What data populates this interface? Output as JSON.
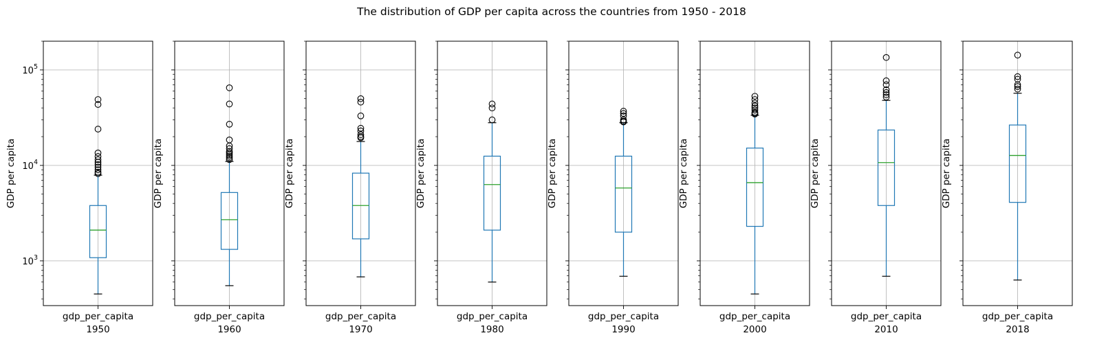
{
  "chart_data": {
    "type": "box",
    "title": "The distribution of GDP per capita across the countries from 1950 - 2018",
    "ylabel": "GDP per capita",
    "y_scale": "log",
    "ylim": [
      340,
      200000
    ],
    "y_major_ticks": [
      1000,
      10000,
      100000
    ],
    "grid": true,
    "colors": {
      "box": "#1f77b4",
      "median": "#2ca02c",
      "whisker": "#1f77b4",
      "cap": "#000000",
      "flier": "#000000",
      "grid": "#b0b0b0"
    },
    "panels": [
      {
        "xlabel": "gdp_per_capita",
        "year": "1950",
        "whisker_low": 450,
        "q1": 1080,
        "median": 2100,
        "q3": 3800,
        "whisker_high": 7900,
        "outliers": [
          49000,
          43500,
          24000,
          13500,
          12400,
          11500,
          10800,
          10200,
          9600,
          9000,
          8500,
          8200
        ]
      },
      {
        "xlabel": "gdp_per_capita",
        "year": "1960",
        "whisker_low": 550,
        "q1": 1320,
        "median": 2700,
        "q3": 5200,
        "whisker_high": 11000,
        "outliers": [
          65000,
          44000,
          27000,
          18500,
          16000,
          15000,
          14000,
          13500,
          13000,
          12500,
          12000,
          11500
        ]
      },
      {
        "xlabel": "gdp_per_capita",
        "year": "1970",
        "whisker_low": 680,
        "q1": 1700,
        "median": 3800,
        "q3": 8300,
        "whisker_high": 17800,
        "outliers": [
          50000,
          46000,
          33000,
          24500,
          23000,
          21000,
          20000,
          19500
        ]
      },
      {
        "xlabel": "gdp_per_capita",
        "year": "1980",
        "whisker_low": 600,
        "q1": 2100,
        "median": 6300,
        "q3": 12500,
        "whisker_high": 28000,
        "outliers": [
          44000,
          40000,
          30000
        ]
      },
      {
        "xlabel": "gdp_per_capita",
        "year": "1990",
        "whisker_low": 690,
        "q1": 2000,
        "median": 5800,
        "q3": 12500,
        "whisker_high": 28000,
        "outliers": [
          37000,
          35000,
          33000,
          30000,
          29000,
          28500
        ]
      },
      {
        "xlabel": "gdp_per_capita",
        "year": "2000",
        "whisker_low": 450,
        "q1": 2300,
        "median": 6600,
        "q3": 15200,
        "whisker_high": 33500,
        "outliers": [
          53000,
          49000,
          45000,
          42000,
          40000,
          38000,
          36000,
          35000,
          34500
        ]
      },
      {
        "xlabel": "gdp_per_capita",
        "year": "2010",
        "whisker_low": 690,
        "q1": 3800,
        "median": 10700,
        "q3": 23500,
        "whisker_high": 48000,
        "outliers": [
          135000,
          77000,
          70000,
          62000,
          58000,
          55000,
          52000
        ]
      },
      {
        "xlabel": "gdp_per_capita",
        "year": "2018",
        "whisker_low": 630,
        "q1": 4100,
        "median": 12700,
        "q3": 26500,
        "whisker_high": 57000,
        "outliers": [
          143000,
          85000,
          80000,
          70000,
          67000,
          63000
        ]
      }
    ]
  }
}
